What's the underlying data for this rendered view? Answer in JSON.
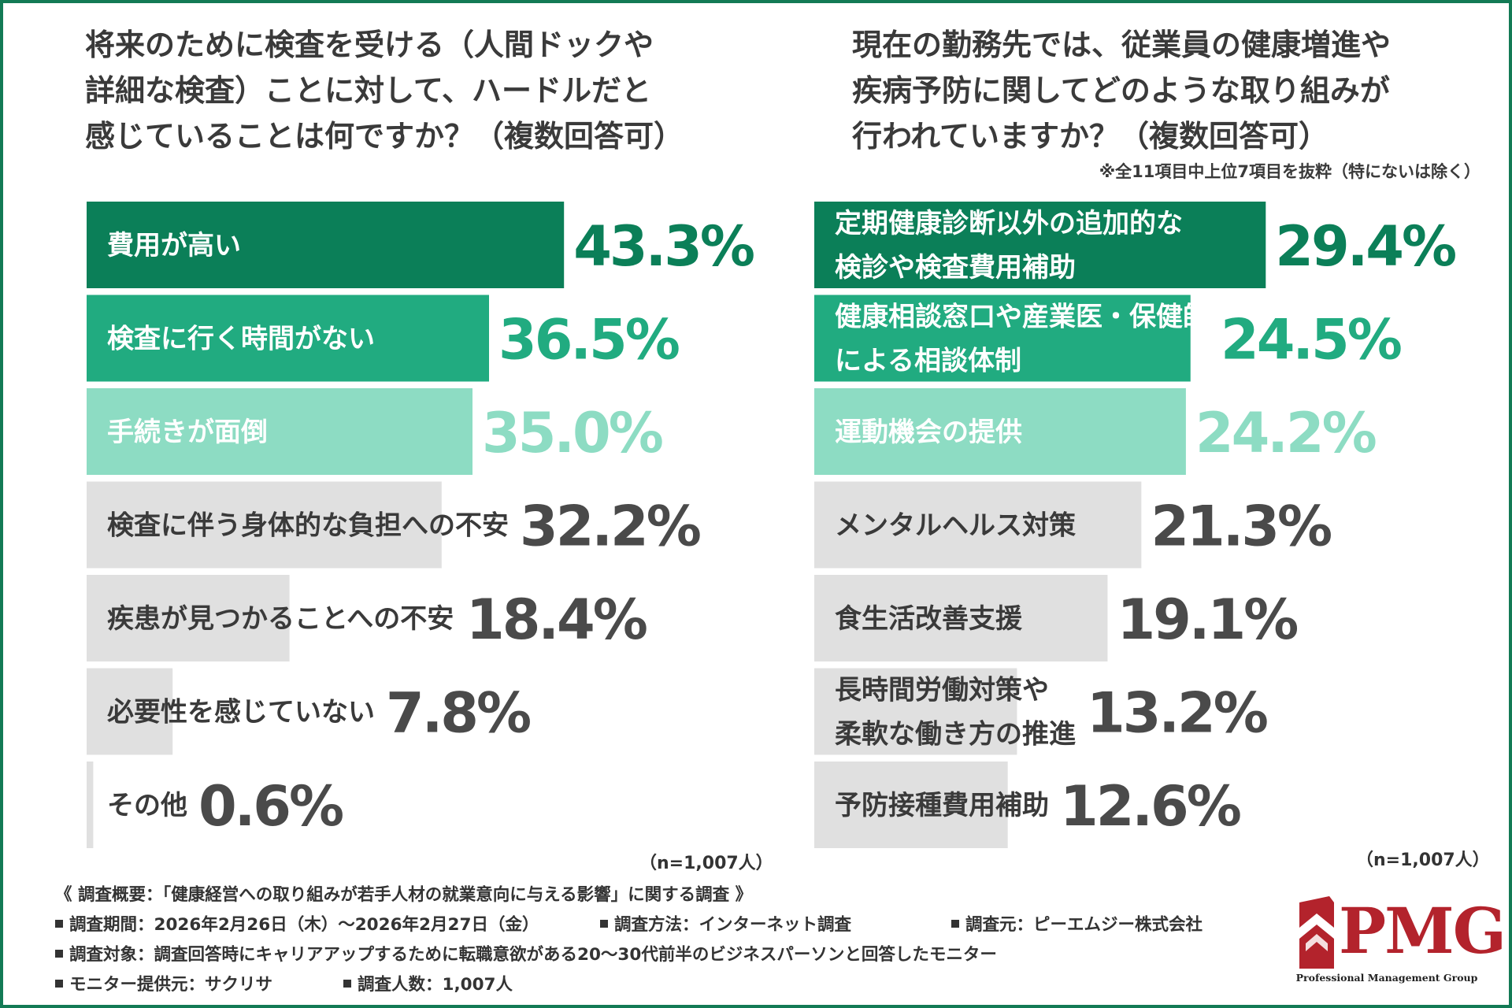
{
  "colors": {
    "rank1": "#0b7f58",
    "rank2": "#21ab80",
    "rank3": "#8ddcc3",
    "other": "#e0e0e0",
    "other_text": "#3a3a3a",
    "frame": "#137a55",
    "logo": "#b3232c"
  },
  "left_question": {
    "title": "将来のために検査を受ける（人間ドックや\n詳細な検査）ことに対して、ハードルだと\n感じていることは何ですか？（複数回答可）",
    "n_label": "（n=1,007人）"
  },
  "right_question": {
    "title": "現在の勤務先では、従業員の健康増進や\n疾病予防に関してどのような取り組みが\n行われていますか？（複数回答可）",
    "note": "※全11項目中上位7項目を抜粋（特にないは除く）",
    "n_label": "（n=1,007人）"
  },
  "chart_data": [
    {
      "type": "bar",
      "orientation": "horizontal",
      "title": "将来のために検査を受ける（人間ドックや詳細な検査）ことに対して、ハードルだと感じていることは何ですか？（複数回答可）",
      "unit": "%",
      "xlim": [
        0,
        100
      ],
      "categories": [
        "費用が高い",
        "検査に行く時間がない",
        "手続きが面倒",
        "検査に伴う身体的な負担への不安",
        "疾患が見つかることへの不安",
        "必要性を感じていない",
        "その他"
      ],
      "values": [
        43.3,
        36.5,
        35.0,
        32.2,
        18.4,
        7.8,
        0.6
      ],
      "value_labels": [
        "43.3%",
        "36.5%",
        "35.0%",
        "32.2%",
        "18.4%",
        "7.8%",
        "0.6%"
      ]
    },
    {
      "type": "bar",
      "orientation": "horizontal",
      "title": "現在の勤務先では、従業員の健康増進や疾病予防に関してどのような取り組みが行われていますか？（複数回答可）",
      "unit": "%",
      "xlim": [
        0,
        100
      ],
      "categories": [
        "定期健康診断以外の追加的な\n検診や検査費用補助",
        "健康相談窓口や産業医・保健師\nによる相談体制",
        "運動機会の提供",
        "メンタルヘルス対策",
        "食生活改善支援",
        "長時間労働対策や\n柔軟な働き方の推進",
        "予防接種費用補助"
      ],
      "values": [
        29.4,
        24.5,
        24.2,
        21.3,
        19.1,
        13.2,
        12.6
      ],
      "value_labels": [
        "29.4%",
        "24.5%",
        "24.2%",
        "21.3%",
        "19.1%",
        "13.2%",
        "12.6%"
      ]
    }
  ],
  "survey": {
    "heading": "《 調査概要：「健康経営への取り組みが若手人材の就業意向に与える影響」に関する調査 》",
    "period": "調査期間：2026年2月26日（木）～2026年2月27日（金）",
    "method": "調査方法：インターネット調査",
    "source": "調査元：ピーエムジー株式会社",
    "target": "調査対象：調査回答時にキャリアアップするために転職意欲がある20～30代前半のビジネスパーソンと回答したモニター",
    "provider": "モニター提供元：サクリサ",
    "count": "調査人数：1,007人"
  },
  "logo": {
    "name": "PMG",
    "tagline": "Professional Management Group"
  }
}
